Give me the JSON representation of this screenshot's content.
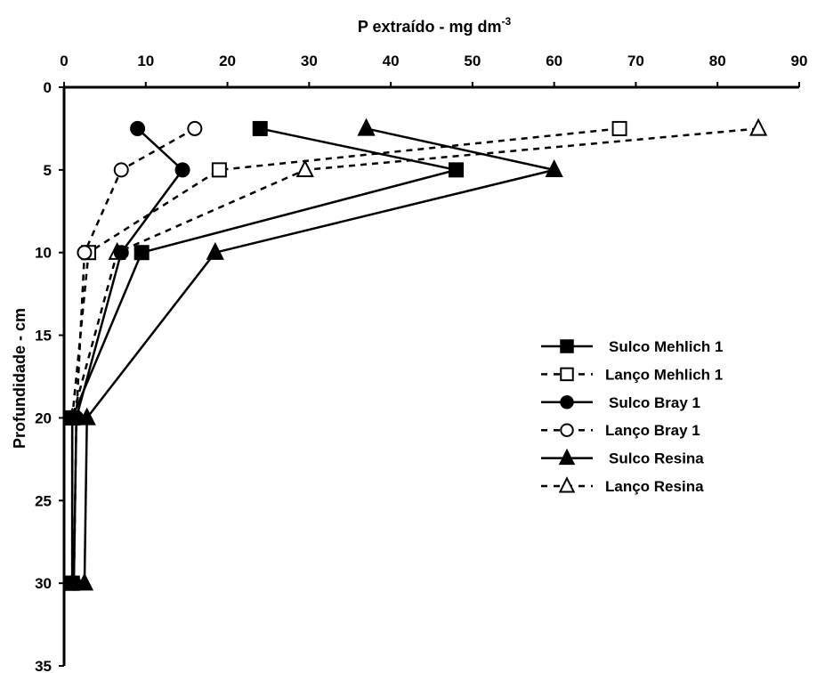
{
  "chart_data": {
    "type": "line",
    "x_title": "P extraído - mg dm",
    "x_title_superscript": "-3",
    "ylabel": "Profundidade - cm",
    "xlim": [
      0,
      90
    ],
    "ylim": [
      0,
      35
    ],
    "y_inverted": true,
    "x_axis_position": "top",
    "x_ticks": [
      0,
      10,
      20,
      30,
      40,
      50,
      60,
      70,
      80,
      90
    ],
    "y_ticks": [
      0,
      5,
      10,
      15,
      20,
      25,
      30,
      35
    ],
    "grid": false,
    "legend_position": "right",
    "series": [
      {
        "name": "Sulco Mehlich 1",
        "marker": "square",
        "filled": true,
        "dashed": false,
        "x": [
          24,
          48,
          9.5,
          1,
          1
        ],
        "y": [
          2.5,
          5,
          10,
          20,
          30
        ]
      },
      {
        "name": "Lanço Mehlich 1",
        "marker": "square",
        "filled": false,
        "dashed": true,
        "x": [
          68,
          19,
          3,
          1,
          1
        ],
        "y": [
          2.5,
          5,
          10,
          20,
          30
        ]
      },
      {
        "name": "Sulco Bray 1",
        "marker": "circle",
        "filled": true,
        "dashed": false,
        "x": [
          9,
          14.5,
          7,
          1.5,
          1.2
        ],
        "y": [
          2.5,
          5,
          10,
          20,
          30
        ]
      },
      {
        "name": "Lanço Bray 1",
        "marker": "circle",
        "filled": false,
        "dashed": true,
        "x": [
          16,
          7,
          2.5,
          1.5,
          1.2
        ],
        "y": [
          2.5,
          5,
          10,
          20,
          30
        ]
      },
      {
        "name": "Sulco Resina",
        "marker": "triangle",
        "filled": true,
        "dashed": false,
        "x": [
          37,
          60,
          18.5,
          2.8,
          2.5
        ],
        "y": [
          2.5,
          5,
          10,
          20,
          30
        ]
      },
      {
        "name": "Lanço Resina",
        "marker": "triangle",
        "filled": false,
        "dashed": true,
        "x": [
          85,
          29.5,
          6.5,
          1,
          1
        ],
        "y": [
          2.5,
          5,
          10,
          20,
          30
        ]
      }
    ]
  }
}
